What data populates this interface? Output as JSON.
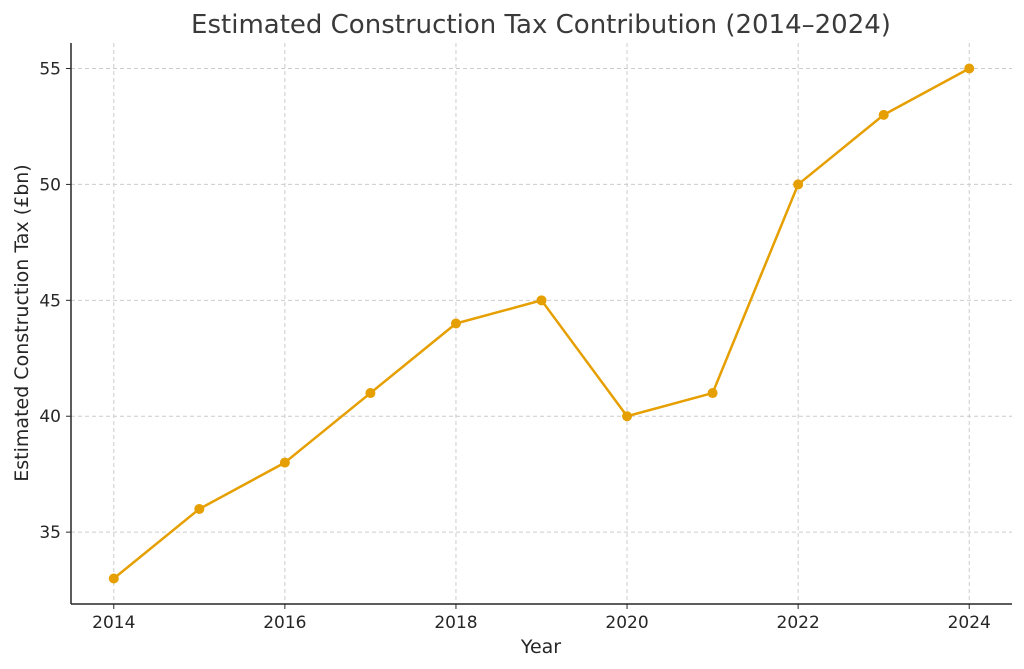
{
  "chart_data": {
    "type": "line",
    "title": "Estimated Construction Tax Contribution (2014–2024)",
    "xlabel": "Year",
    "ylabel": "Estimated Construction Tax (£bn)",
    "x": [
      2014,
      2015,
      2016,
      2017,
      2018,
      2019,
      2020,
      2021,
      2022,
      2023,
      2024
    ],
    "series": [
      {
        "name": "Estimated Construction Tax",
        "values": [
          33,
          36,
          38,
          41,
          44,
          45,
          40,
          41,
          50,
          53,
          55
        ],
        "color": "#E69F00"
      }
    ],
    "xticks": [
      "2014",
      "2016",
      "2018",
      "2020",
      "2022",
      "2024"
    ],
    "yticks": [
      "35",
      "40",
      "45",
      "50",
      "55"
    ],
    "xlim": [
      2013.5,
      2024.5
    ],
    "ylim": [
      31.9,
      56.1
    ],
    "grid": true,
    "legend": "none"
  }
}
